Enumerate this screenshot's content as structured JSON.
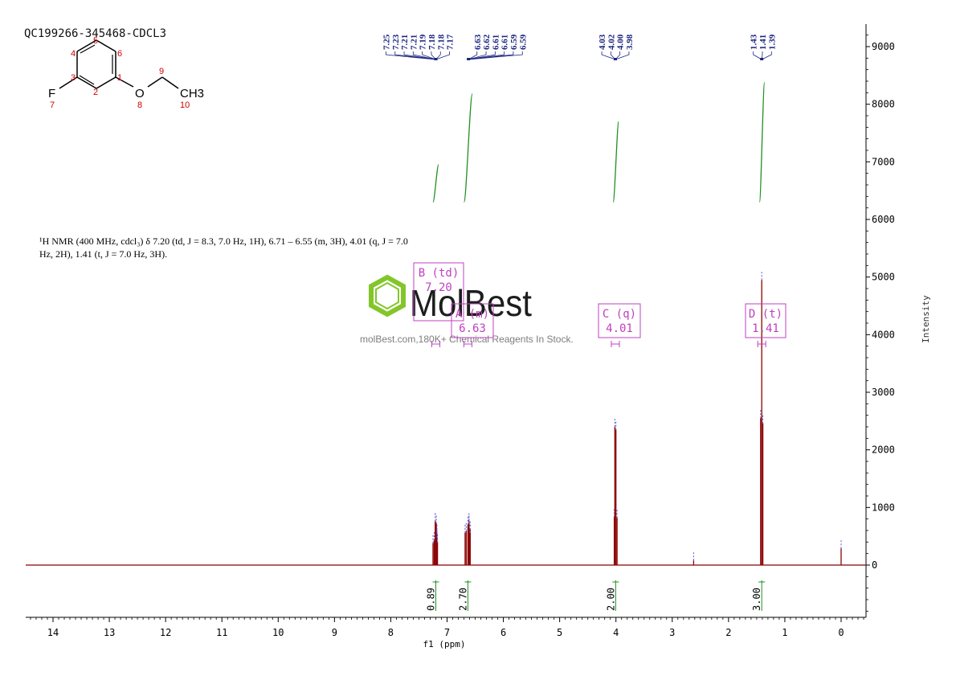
{
  "sample_id": "QC199266-345468-CDCL3",
  "description_line1": "¹H NMR (400 MHz, cdcl₃) δ 7.20 (td, J = 8.3, 7.0 Hz, 1H), 6.71 – 6.55 (m, 3H), 4.01 (q, J = 7.0",
  "description_line2": "Hz, 2H), 1.41 (t, J = 7.0 Hz, 3H).",
  "watermark": {
    "brand": "MolBest",
    "tagline": "molBest.com,180K+ Chemical Reagents In Stock."
  },
  "molecule": {
    "atoms": [
      {
        "symbol": "F",
        "number": "7"
      },
      {
        "symbol": "O",
        "number": "8"
      },
      {
        "symbol": "CH3",
        "number": "10"
      }
    ],
    "ring_numbers": [
      "1",
      "2",
      "3",
      "4",
      "5",
      "6"
    ],
    "chain_numbers": [
      "9"
    ]
  },
  "colors": {
    "spectrum": "#8b0000",
    "peak_labels": "#1a237e",
    "integral": "#1f8f1f",
    "multiplet_box": "#c040c0",
    "molecule_numbers": "#d00000",
    "watermark_green": "#7dc41f",
    "axis": "#000000"
  },
  "chart_data": {
    "type": "line",
    "xlabel": "f1 (ppm)",
    "ylabel": "Intensity",
    "xlim": [
      14.5,
      -0.4
    ],
    "ylim": [
      -900,
      9500
    ],
    "x_reversed": true,
    "x_ticks": [
      14,
      13,
      12,
      11,
      10,
      9,
      8,
      7,
      6,
      5,
      4,
      3,
      2,
      1,
      0
    ],
    "y_ticks": [
      0,
      1000,
      2000,
      3000,
      4000,
      5000,
      6000,
      7000,
      8000,
      9000
    ],
    "peak_labels": [
      {
        "group": 1,
        "labels": [
          "7.25",
          "7.23",
          "7.21",
          "7.21",
          "7.19",
          "7.18",
          "7.18",
          "7.17"
        ],
        "target": 7.2
      },
      {
        "group": 2,
        "labels": [
          "6.63",
          "6.62",
          "6.61",
          "6.61",
          "6.59",
          "6.59"
        ],
        "target": 6.62
      },
      {
        "group": 3,
        "labels": [
          "4.03",
          "4.02",
          "4.00",
          "3.98"
        ],
        "target": 4.01
      },
      {
        "group": 4,
        "labels": [
          "1.43",
          "1.41",
          "1.39"
        ],
        "target": 1.41
      }
    ],
    "multiplets": [
      {
        "label": "B (td)",
        "shift": "7.20",
        "x": 7.2
      },
      {
        "label": "A (m)",
        "shift": "6.63",
        "x": 6.63
      },
      {
        "label": "C (q)",
        "shift": "4.01",
        "x": 4.01
      },
      {
        "label": "D (t)",
        "shift": "1.41",
        "x": 1.41
      }
    ],
    "integrals": [
      {
        "value": "0.89",
        "from": 7.25,
        "to": 7.15
      },
      {
        "value": "2.70",
        "from": 6.71,
        "to": 6.55
      },
      {
        "value": "2.00",
        "from": 4.06,
        "to": 3.95
      },
      {
        "value": "3.00",
        "from": 1.46,
        "to": 1.36
      }
    ],
    "integral_curves": [
      {
        "x_start": 7.25,
        "x_end": 7.15,
        "y_start": 6300,
        "y_end": 6950
      },
      {
        "x_start": 6.7,
        "x_end": 6.55,
        "y_start": 6300,
        "y_end": 8180
      },
      {
        "x_start": 4.05,
        "x_end": 3.95,
        "y_start": 6300,
        "y_end": 7700
      },
      {
        "x_start": 1.45,
        "x_end": 1.36,
        "y_start": 6300,
        "y_end": 8380
      }
    ],
    "peaks": [
      {
        "x": 7.25,
        "y": 380
      },
      {
        "x": 7.23,
        "y": 430
      },
      {
        "x": 7.21,
        "y": 760
      },
      {
        "x": 7.21,
        "y": 760
      },
      {
        "x": 7.19,
        "y": 720
      },
      {
        "x": 7.18,
        "y": 560
      },
      {
        "x": 7.18,
        "y": 470
      },
      {
        "x": 7.17,
        "y": 390
      },
      {
        "x": 6.68,
        "y": 560
      },
      {
        "x": 6.66,
        "y": 590
      },
      {
        "x": 6.63,
        "y": 700
      },
      {
        "x": 6.62,
        "y": 650
      },
      {
        "x": 6.61,
        "y": 760
      },
      {
        "x": 6.61,
        "y": 720
      },
      {
        "x": 6.59,
        "y": 620
      },
      {
        "x": 6.59,
        "y": 560
      },
      {
        "x": 4.03,
        "y": 830
      },
      {
        "x": 4.02,
        "y": 2400
      },
      {
        "x": 4.0,
        "y": 2350
      },
      {
        "x": 3.98,
        "y": 820
      },
      {
        "x": 1.43,
        "y": 2550
      },
      {
        "x": 1.41,
        "y": 4950
      },
      {
        "x": 1.39,
        "y": 2460
      },
      {
        "x": 2.62,
        "y": 80
      },
      {
        "x": 0.0,
        "y": 290
      }
    ]
  }
}
